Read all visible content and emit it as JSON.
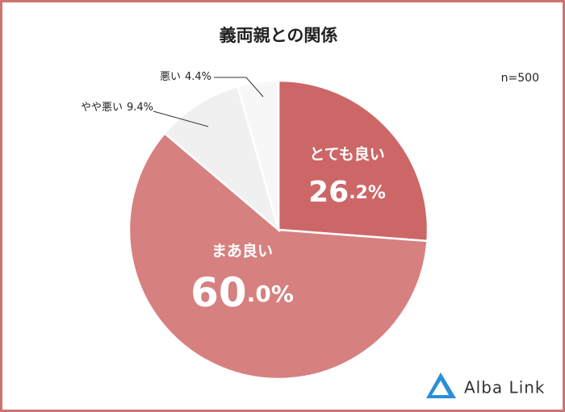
{
  "chart_data": {
    "type": "pie",
    "title": "義両親との関係",
    "annotation": "n=500",
    "categories": [
      "とても良い",
      "まあ良い",
      "やや悪い",
      "悪い"
    ],
    "values": [
      26.2,
      60.0,
      9.4,
      4.4
    ],
    "value_labels": [
      "26.2%",
      "60.0%",
      "9.4%",
      "4.4%"
    ],
    "colors": [
      "#cd6767",
      "#d78080",
      "#f0f0f0",
      "#f7f7f7"
    ]
  },
  "logo": {
    "text": "Alba Link"
  }
}
